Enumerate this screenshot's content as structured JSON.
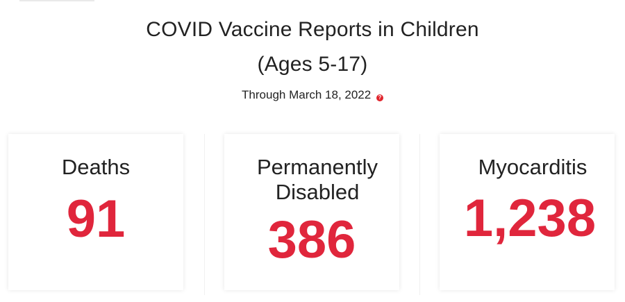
{
  "header": {
    "title_line1": "COVID Vaccine Reports in Children",
    "title_line2": "(Ages 5-17)",
    "subtitle": "Through March 18, 2022",
    "info_icon_glyph": "?"
  },
  "cards": [
    {
      "label": "Deaths",
      "value": "91"
    },
    {
      "label": "Permanently Disabled",
      "value": "386"
    },
    {
      "label": "Myocarditis",
      "value": "1,238"
    }
  ],
  "colors": {
    "accent": "#e0263c",
    "text": "#222222",
    "background": "#ffffff"
  }
}
